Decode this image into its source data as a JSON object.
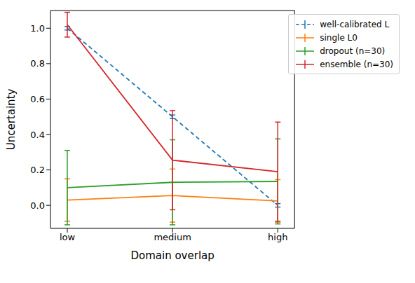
{
  "chart_data": {
    "type": "line",
    "x_label": "Domain overlap",
    "y_label": "Uncertainty",
    "categories": [
      "low",
      "medium",
      "high"
    ],
    "ylim": [
      -0.13,
      1.1
    ],
    "yticks": [
      {
        "value": 0,
        "label": "0.0"
      },
      {
        "value": 0.2,
        "label": "0.2"
      },
      {
        "value": 0.4,
        "label": "0.4"
      },
      {
        "value": 0.6,
        "label": "0.6"
      },
      {
        "value": 0.8,
        "label": "0.8"
      },
      {
        "value": 1,
        "label": "1.0"
      }
    ],
    "legend": "upper right",
    "series": [
      {
        "name": "well-calibrated L",
        "color": "#1f77b4",
        "line_style": "dashed",
        "values": [
          1.0,
          0.5,
          0.0
        ],
        "errors": [
          0.01,
          0.01,
          0.01
        ]
      },
      {
        "name": "single L0",
        "color": "#ff7f0e",
        "line_style": "solid",
        "values": [
          0.03,
          0.055,
          0.025
        ],
        "errors": [
          0.12,
          0.15,
          0.12
        ]
      },
      {
        "name": "dropout (n=30)",
        "color": "#2ca02c",
        "line_style": "solid",
        "values": [
          0.1,
          0.13,
          0.135
        ],
        "errors": [
          0.21,
          0.24,
          0.24
        ]
      },
      {
        "name": "ensemble (n=30)",
        "color": "#d62728",
        "line_style": "solid",
        "values": [
          1.02,
          0.255,
          0.19
        ],
        "errors": [
          0.07,
          0.28,
          0.28
        ]
      }
    ]
  }
}
